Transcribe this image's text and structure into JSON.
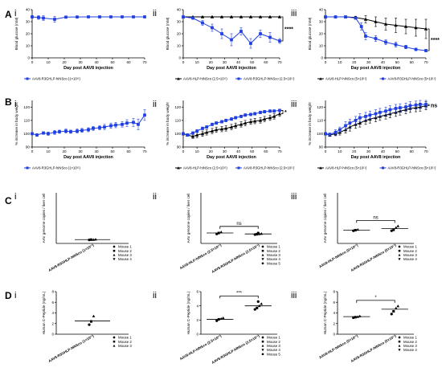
{
  "colors": {
    "blue": "#1f3fe0",
    "black": "#000000",
    "axis": "#000000"
  },
  "rows": [
    {
      "letter": "A",
      "ylabel": "Blood glucose (mM)",
      "xlabel": "Day post AAV8 injection"
    },
    {
      "letter": "B",
      "ylabel": "% increase in body weight",
      "xlabel": "Day post AAV8 injection"
    },
    {
      "letter": "C",
      "ylabel": "AAV genome copies / liver cell"
    },
    {
      "letter": "D",
      "ylabel": "Human C-Peptide (ng/mL)"
    }
  ],
  "chart_data": [
    {
      "panel": "A-i",
      "roman": "i",
      "type": "line",
      "xlabel": "Day post AAV8 injection",
      "ylabel": "Blood glucose (mM)",
      "xlim": [
        0,
        70
      ],
      "ylim": [
        0,
        40
      ],
      "xticks": [
        0,
        10,
        20,
        30,
        40,
        50,
        60,
        70
      ],
      "yticks": [
        0,
        10,
        20,
        30,
        40
      ],
      "series": [
        {
          "name": "AAV8-R3GHLP-hINSco (1×10¹¹)",
          "color": "blue",
          "marker": "square",
          "x": [
            0,
            4,
            7,
            14,
            21,
            28,
            35,
            42,
            49,
            56,
            63,
            70
          ],
          "y": [
            34,
            33.5,
            33,
            32,
            33.8,
            33.9,
            34,
            34,
            34,
            34,
            34,
            34
          ],
          "err": [
            1,
            1.5,
            2,
            2.5,
            1,
            0.8,
            0.5,
            0.5,
            0.5,
            0.5,
            0.5,
            0.5
          ]
        }
      ]
    },
    {
      "panel": "A-ii",
      "roman": "ii",
      "type": "line",
      "xlabel": "Day post AAV8 injection",
      "ylabel": "Blood glucose (mM)",
      "xlim": [
        0,
        70
      ],
      "ylim": [
        0,
        40
      ],
      "xticks": [
        0,
        10,
        20,
        30,
        40,
        50,
        60,
        70
      ],
      "yticks": [
        0,
        10,
        20,
        30,
        40
      ],
      "significance": "****",
      "series": [
        {
          "name": "AAV8-HLP-hINSco (2.5×10¹¹)",
          "color": "black",
          "marker": "triangle",
          "x": [
            0,
            7,
            14,
            21,
            28,
            35,
            42,
            49,
            56,
            63,
            70
          ],
          "y": [
            34,
            34,
            34,
            34,
            34,
            34,
            34,
            34,
            34,
            34,
            34
          ],
          "err": [
            0.3,
            0.3,
            0.3,
            0.3,
            0.3,
            0.3,
            0.3,
            0.3,
            0.3,
            0.3,
            0.3
          ]
        },
        {
          "name": "AAV8-R3GHLP-hINSco (2.5×10¹¹)",
          "color": "blue",
          "marker": "square",
          "x": [
            0,
            7,
            14,
            21,
            28,
            35,
            42,
            49,
            56,
            63,
            70
          ],
          "y": [
            34,
            33,
            29,
            25,
            20,
            15,
            22,
            12,
            20,
            17,
            14
          ],
          "err": [
            0.5,
            1,
            2,
            3,
            4,
            5,
            3,
            4,
            3,
            4,
            2
          ]
        }
      ]
    },
    {
      "panel": "A-iii",
      "roman": "iii",
      "type": "line",
      "xlabel": "Day post AAV8 injection",
      "ylabel": "Blood glucose (mM)",
      "xlim": [
        0,
        70
      ],
      "ylim": [
        0,
        40
      ],
      "xticks": [
        0,
        10,
        20,
        30,
        40,
        50,
        60,
        70
      ],
      "yticks": [
        0,
        10,
        20,
        30,
        40
      ],
      "significance": "****",
      "series": [
        {
          "name": "AAV8-HLP-hINSco (5×10¹¹)",
          "color": "black",
          "marker": "triangle",
          "x": [
            0,
            7,
            14,
            21,
            28,
            35,
            42,
            49,
            56,
            63,
            70
          ],
          "y": [
            34,
            34,
            34,
            33.5,
            32,
            30,
            28,
            27,
            26,
            25,
            24
          ],
          "err": [
            0.3,
            0.3,
            0.5,
            1,
            3,
            4,
            5,
            6,
            6,
            7,
            8
          ]
        },
        {
          "name": "AAV8-R3GHLP-hINSco (5×10¹¹)",
          "color": "blue",
          "marker": "square",
          "x": [
            0,
            7,
            14,
            21,
            25,
            28,
            35,
            42,
            49,
            56,
            63,
            70
          ],
          "y": [
            34,
            34,
            34,
            33,
            26,
            18,
            16,
            13,
            11,
            9,
            7,
            6
          ],
          "err": [
            0.3,
            0.3,
            0.3,
            1,
            3,
            3,
            2.5,
            2,
            2,
            1.5,
            1,
            1
          ]
        }
      ]
    },
    {
      "panel": "B-i",
      "roman": "i",
      "type": "line",
      "xlabel": "Day post AAV8 injection",
      "ylabel": "% increase in body weight",
      "xlim": [
        0,
        70
      ],
      "ylim": [
        90,
        125
      ],
      "xticks": [
        0,
        10,
        20,
        30,
        40,
        50,
        60,
        70
      ],
      "yticks": [
        90,
        100,
        110,
        120
      ],
      "series": [
        {
          "name": "AAV8-R3GHLP-hINSco (1×10¹¹)",
          "color": "blue",
          "marker": "square",
          "x": [
            0,
            3,
            7,
            10,
            14,
            17,
            21,
            24,
            28,
            31,
            35,
            38,
            42,
            45,
            49,
            52,
            56,
            59,
            63,
            66,
            70
          ],
          "y": [
            100,
            99,
            100.5,
            100,
            101,
            101.5,
            102,
            101.5,
            102,
            102.5,
            103,
            104,
            104.5,
            105,
            106,
            106.5,
            107,
            108,
            108.5,
            107,
            114
          ],
          "err": [
            0.5,
            1,
            1,
            1.2,
            1.5,
            1.2,
            1.5,
            1.2,
            1.5,
            1.5,
            1.5,
            1.5,
            1.5,
            2,
            2,
            2,
            2,
            2.5,
            3,
            4,
            4
          ]
        }
      ]
    },
    {
      "panel": "B-ii",
      "roman": "ii",
      "type": "line",
      "xlabel": "Day post AAV8 injection",
      "ylabel": "% increase in body weight",
      "xlim": [
        0,
        70
      ],
      "ylim": [
        90,
        125
      ],
      "xticks": [
        0,
        10,
        20,
        30,
        40,
        50,
        60,
        70
      ],
      "yticks": [
        90,
        100,
        110,
        120
      ],
      "significance": "*",
      "series": [
        {
          "name": "AAV8-HLP-hINSco (2.5×10¹¹)",
          "color": "black",
          "marker": "triangle",
          "x": [
            0,
            3,
            7,
            10,
            14,
            17,
            21,
            24,
            28,
            31,
            35,
            38,
            42,
            45,
            49,
            52,
            56,
            59,
            63,
            66,
            70
          ],
          "y": [
            100,
            99,
            98,
            99,
            100,
            101,
            102,
            103,
            103.5,
            104,
            105,
            106,
            107,
            108,
            109,
            109.5,
            110,
            111,
            112,
            113,
            115
          ],
          "err": [
            1,
            1,
            1.5,
            2,
            2,
            2,
            2,
            2,
            2,
            2,
            2,
            2,
            2,
            2,
            2,
            2,
            2,
            2,
            2,
            2,
            2
          ]
        },
        {
          "name": "AAV8-R3GHLP-hINSco (2.5×10¹¹)",
          "color": "blue",
          "marker": "square",
          "x": [
            0,
            3,
            7,
            10,
            14,
            17,
            21,
            24,
            28,
            31,
            35,
            38,
            42,
            45,
            49,
            52,
            56,
            59,
            63,
            66,
            70
          ],
          "y": [
            100,
            99,
            100.5,
            102,
            104,
            105,
            107,
            108,
            109,
            110,
            111,
            112,
            113,
            114,
            114.5,
            115,
            116,
            116.5,
            117,
            117,
            117.5
          ],
          "err": [
            0.5,
            1,
            1,
            1,
            1,
            1,
            1,
            1,
            1,
            1,
            1,
            1,
            1,
            1,
            1,
            1,
            1,
            1,
            1,
            1,
            1
          ]
        }
      ]
    },
    {
      "panel": "B-iii",
      "roman": "iii",
      "type": "line",
      "xlabel": "Day post AAV8 injection",
      "ylabel": "% increase in body weight",
      "xlim": [
        0,
        70
      ],
      "ylim": [
        90,
        125
      ],
      "xticks": [
        0,
        10,
        20,
        30,
        40,
        50,
        60,
        70
      ],
      "yticks": [
        90,
        100,
        110,
        120
      ],
      "significance": "ns",
      "series": [
        {
          "name": "AAV8-HLP-hINSco (5×10¹¹)",
          "color": "black",
          "marker": "triangle",
          "x": [
            0,
            3,
            7,
            10,
            14,
            17,
            21,
            24,
            28,
            31,
            35,
            38,
            42,
            45,
            49,
            52,
            56,
            59,
            63,
            66,
            70
          ],
          "y": [
            100,
            99,
            100,
            101,
            103,
            105,
            107,
            108,
            110,
            111,
            112,
            113,
            114,
            115,
            116,
            117,
            118,
            119,
            119.5,
            120,
            121
          ],
          "err": [
            1,
            1,
            1.5,
            2,
            2.5,
            3,
            3,
            3,
            3,
            3,
            3,
            3,
            3,
            3,
            3,
            3,
            3,
            3,
            3,
            3,
            3
          ]
        },
        {
          "name": "AAV8-R3GHLP-hINSco (5×10¹¹)",
          "color": "blue",
          "marker": "square",
          "x": [
            0,
            3,
            7,
            10,
            14,
            17,
            21,
            24,
            28,
            31,
            35,
            38,
            42,
            45,
            49,
            52,
            56,
            59,
            63,
            66,
            70
          ],
          "y": [
            100,
            99.5,
            101,
            103,
            106,
            108,
            110,
            112,
            113,
            114,
            115,
            116,
            117,
            118,
            119,
            119.5,
            120,
            121,
            121.5,
            122,
            122
          ],
          "err": [
            1,
            1,
            2,
            2,
            3,
            3,
            3,
            3,
            3,
            3,
            3,
            3,
            3,
            3,
            3,
            3,
            3,
            3,
            3,
            3,
            3
          ]
        }
      ]
    },
    {
      "panel": "C-i",
      "roman": "i",
      "type": "scatter",
      "ylabel": "AAV genome copies / liver cell",
      "ylim": [
        0,
        1.6
      ],
      "groups": [
        {
          "label": "AAV8-R3GHLP-hINSco (1×10¹¹)",
          "values": [
            0.11,
            0.12,
            0.12,
            0.13
          ],
          "mean": 0.12
        }
      ],
      "legend": [
        "Mouse 1",
        "Mouse 2",
        "Mouse 3",
        "Mouse 4"
      ]
    },
    {
      "panel": "C-ii",
      "roman": "ii",
      "type": "scatter",
      "ylabel": "AAV genome copies / liver cell",
      "ylim": [
        0,
        1.6
      ],
      "significance": "ns",
      "groups": [
        {
          "label": "AAV8-HLP-hINSco (2.5×10¹¹)",
          "values": [
            0.3,
            0.33,
            0.36
          ],
          "mean": 0.33
        },
        {
          "label": "AAV8-R3GHLP-hINSco (2.5×10¹¹)",
          "values": [
            0.28,
            0.29,
            0.3,
            0.31,
            0.33
          ],
          "mean": 0.3
        }
      ],
      "legend": [
        "Mouse 1",
        "Mouse 2",
        "Mouse 3",
        "Mouse 4",
        "Mouse 5"
      ]
    },
    {
      "panel": "C-iii",
      "roman": "iii",
      "type": "scatter",
      "ylabel": "AAV genome copies / liver cell",
      "ylim": [
        0,
        1.6
      ],
      "significance": "ns",
      "groups": [
        {
          "label": "AAV8-HLP-hINSco (5×10¹¹)",
          "values": [
            0.4,
            0.42,
            0.44
          ],
          "mean": 0.42
        },
        {
          "label": "AAV8-R3GHLP-hINSco (5×10¹¹)",
          "values": [
            0.4,
            0.43,
            0.5,
            0.55
          ],
          "mean": 0.47
        }
      ],
      "legend": [
        "Mouse 1",
        "Mouse 2",
        "Mouse 3",
        "Mouse 4"
      ]
    },
    {
      "panel": "D-i",
      "roman": "i",
      "type": "scatter",
      "ylabel": "Human C-Peptide (ng/mL)",
      "ylim": [
        0,
        8
      ],
      "yticks": [
        0,
        2,
        4,
        6,
        8
      ],
      "groups": [
        {
          "label": "AAV8-R3GHLP-hINSco (1×10¹¹)",
          "values": [
            1.8,
            2.4,
            3.4
          ],
          "mean": 2.5
        }
      ],
      "legend": [
        "Mouse 1",
        "Mouse 2",
        "Mouse 3"
      ]
    },
    {
      "panel": "D-ii",
      "roman": "ii",
      "type": "scatter",
      "ylabel": "Human C-Peptide (ng/mL)",
      "ylim": [
        0,
        6
      ],
      "yticks": [
        0,
        2,
        4,
        6
      ],
      "significance": "***",
      "groups": [
        {
          "label": "AAV8-HLP-hINSco (2.5×10¹¹)",
          "values": [
            1.9,
            2.1,
            2.2,
            2.3
          ],
          "mean": 2.1
        },
        {
          "label": "AAV8-R3GHLP-hINSco (2.5×10¹¹)",
          "values": [
            3.5,
            3.7,
            4.0,
            4.3,
            4.6
          ],
          "mean": 4.0
        }
      ],
      "legend": [
        "Mouse 1",
        "Mouse 2",
        "Mouse 3",
        "Mouse 4",
        "Mouse 5"
      ]
    },
    {
      "panel": "D-iii",
      "roman": "iii",
      "type": "scatter",
      "ylabel": "Human C-Peptide (ng/mL)",
      "ylim": [
        0,
        8
      ],
      "yticks": [
        0,
        2,
        4,
        6,
        8
      ],
      "significance": "*",
      "groups": [
        {
          "label": "AAV8-HLP-hINSco (5×10¹¹)",
          "values": [
            3.1,
            3.2,
            3.3,
            3.4
          ],
          "mean": 3.3
        },
        {
          "label": "AAV8-R3GHLP-hINSco (5×10¹¹)",
          "values": [
            3.8,
            4.3,
            4.9,
            5.3
          ],
          "mean": 4.7
        }
      ],
      "legend": [
        "Mouse 1",
        "Mouse 2",
        "Mouse 3",
        "Mouse 4"
      ]
    }
  ]
}
